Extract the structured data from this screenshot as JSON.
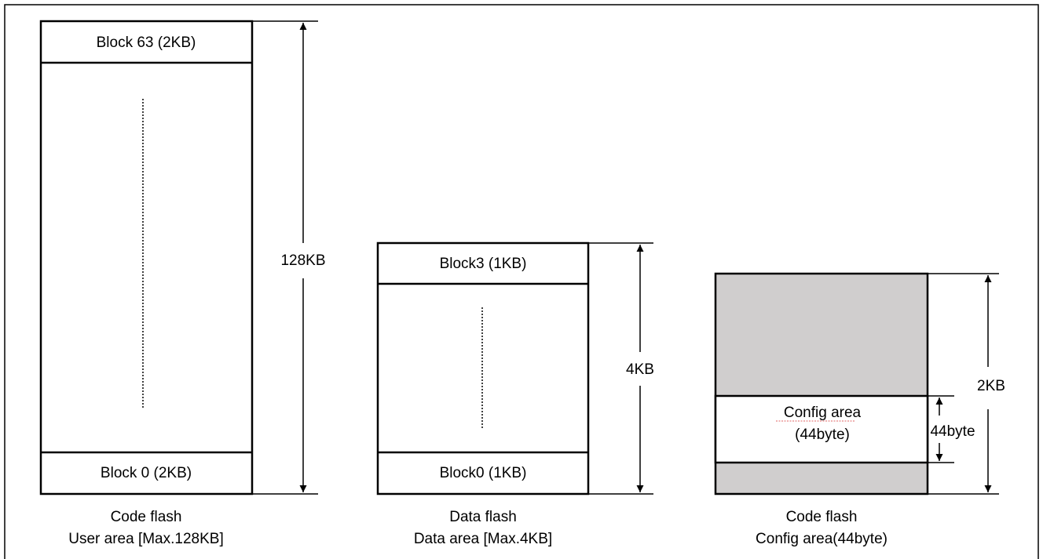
{
  "user_area": {
    "top_block": "Block 63 (2KB)",
    "bottom_block": "Block 0 (2KB)",
    "size": "128KB",
    "caption_line1": "Code flash",
    "caption_line2": "User area [Max.128KB]"
  },
  "data_area": {
    "top_block": "Block3 (1KB)",
    "bottom_block": "Block0 (1KB)",
    "size": "4KB",
    "caption_line1": "Data flash",
    "caption_line2": "Data area [Max.4KB]"
  },
  "config_area": {
    "label_line1": "Config area",
    "label_line2": "(44byte)",
    "inner_size": "44byte",
    "size": "2KB",
    "caption_line1": "Code flash",
    "caption_line2": "Config area(44byte)"
  },
  "colors": {
    "fill_gray": "#d0cece",
    "line": "#000000"
  }
}
